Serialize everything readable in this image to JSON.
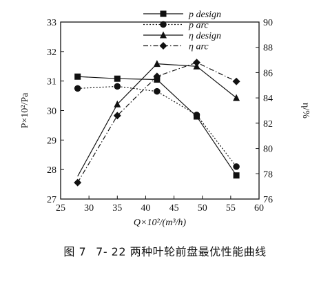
{
  "chart_data": {
    "type": "line",
    "title": "",
    "x": [
      28,
      35,
      42,
      49,
      56
    ],
    "xlabel": "Q×10²/(m³/h)",
    "xlim": [
      25,
      60
    ],
    "xticks": [
      "25",
      "30",
      "35",
      "40",
      "45",
      "50",
      "55",
      "60"
    ],
    "ylabel_left": "P×10²/Pa",
    "ylim_left": [
      27,
      33
    ],
    "yticks_left": [
      "27",
      "28",
      "29",
      "30",
      "31",
      "32",
      "33"
    ],
    "ylabel_right": "η/%",
    "ylim_right": [
      76,
      90
    ],
    "yticks_right": [
      "76",
      "78",
      "80",
      "82",
      "84",
      "86",
      "88",
      "90"
    ],
    "grid": false,
    "legend_position": "top-center",
    "series": [
      {
        "name": "p design",
        "axis": "left",
        "line": "solid",
        "marker": "square",
        "values": [
          31.15,
          31.08,
          31.05,
          29.8,
          27.8
        ]
      },
      {
        "name": "p arc",
        "axis": "left",
        "line": "dotted",
        "marker": "circle",
        "values": [
          30.75,
          30.82,
          30.65,
          29.85,
          28.1
        ]
      },
      {
        "name": "η design",
        "axis": "right",
        "line": "solid",
        "marker": "triangle",
        "values": [
          77.8,
          83.5,
          86.7,
          86.5,
          84.0
        ]
      },
      {
        "name": "η arc",
        "axis": "right",
        "line": "dashdot",
        "marker": "diamond",
        "values": [
          77.3,
          82.6,
          85.7,
          86.8,
          85.3
        ]
      }
    ]
  },
  "caption": {
    "figure_no": "图 7",
    "text": "7- 22 两种叶轮前盘最优性能曲线"
  }
}
